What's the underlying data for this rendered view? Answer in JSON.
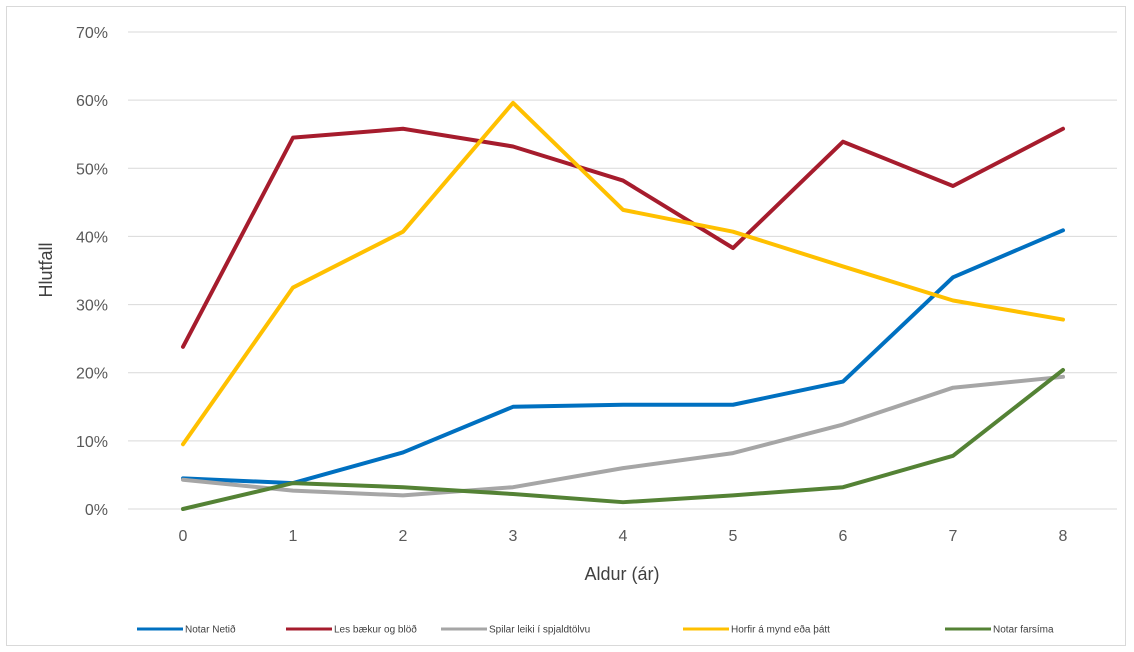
{
  "chart_data": {
    "type": "line",
    "title": "",
    "xlabel": "Aldur (ár)",
    "ylabel": "Hlutfall",
    "x": [
      0,
      1,
      2,
      3,
      4,
      5,
      6,
      7,
      8
    ],
    "x_tick_labels": [
      "0",
      "1",
      "2",
      "3",
      "4",
      "5",
      "6",
      "7",
      "8"
    ],
    "ylim": [
      0,
      70
    ],
    "y_ticks": [
      0,
      10,
      20,
      30,
      40,
      50,
      60,
      70
    ],
    "y_tick_labels": [
      "0%",
      "10%",
      "20%",
      "30%",
      "40%",
      "50%",
      "60%",
      "70%"
    ],
    "grid": true,
    "legend_position": "bottom",
    "series": [
      {
        "name": "Notar Netið",
        "color": "#0070c0",
        "values": [
          4.5,
          3.8,
          8.3,
          15.0,
          15.3,
          15.3,
          18.7,
          34.0,
          40.9
        ]
      },
      {
        "name": "Les bækur og blöð",
        "color": "#a61c2d",
        "values": [
          23.8,
          54.5,
          55.8,
          53.2,
          48.2,
          38.3,
          53.9,
          47.4,
          55.8
        ]
      },
      {
        "name": "Spilar leiki í spjaldtölvu",
        "color": "#a6a6a6",
        "values": [
          4.3,
          2.7,
          2.0,
          3.2,
          6.0,
          8.2,
          12.4,
          17.8,
          19.4
        ]
      },
      {
        "name": "Horfir á mynd eða þátt",
        "color": "#ffc000",
        "values": [
          9.5,
          32.5,
          40.7,
          59.6,
          43.9,
          40.7,
          35.6,
          30.6,
          27.8
        ]
      },
      {
        "name": "Notar farsíma",
        "color": "#548235",
        "values": [
          0.0,
          3.8,
          3.2,
          2.2,
          1.0,
          2.0,
          3.2,
          7.8,
          20.4
        ]
      }
    ]
  }
}
